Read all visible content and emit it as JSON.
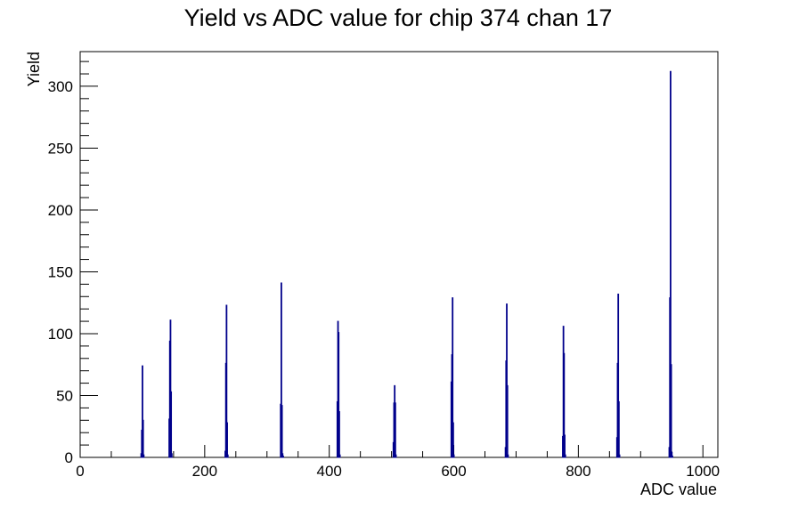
{
  "chart_data": {
    "type": "bar",
    "title": "Yield vs ADC value for chip 374 chan 17",
    "xlabel": "ADC value",
    "ylabel": "Yield",
    "xlim": [
      0,
      1024
    ],
    "ylim": [
      0,
      328
    ],
    "grid": false,
    "legend": "none",
    "x_ticks": [
      0,
      200,
      400,
      600,
      800,
      1000
    ],
    "y_ticks": [
      0,
      50,
      100,
      150,
      200,
      250,
      300
    ],
    "bin_width": 1,
    "line_color": "#00008b",
    "series": [
      {
        "x": [
          98,
          99,
          100,
          101,
          102,
          143,
          144,
          145,
          146,
          147,
          233,
          234,
          235,
          236,
          237,
          322,
          323,
          324,
          325,
          326,
          413,
          414,
          415,
          416,
          417,
          503,
          504,
          505,
          506,
          507,
          596,
          597,
          598,
          599,
          600,
          683,
          684,
          685,
          686,
          687,
          775,
          776,
          777,
          778,
          779,
          862,
          863,
          864,
          865,
          866,
          946,
          947,
          948,
          949,
          950,
          951
        ],
        "values": [
          3,
          22,
          74,
          30,
          2,
          31,
          94,
          111,
          53,
          3,
          5,
          76,
          123,
          28,
          2,
          43,
          141,
          42,
          3,
          1,
          45,
          110,
          101,
          37,
          2,
          12,
          44,
          58,
          44,
          2,
          61,
          83,
          129,
          28,
          2,
          8,
          78,
          124,
          58,
          2,
          17,
          106,
          84,
          18,
          2,
          16,
          76,
          132,
          45,
          2,
          8,
          129,
          312,
          75,
          4,
          1
        ]
      }
    ]
  }
}
